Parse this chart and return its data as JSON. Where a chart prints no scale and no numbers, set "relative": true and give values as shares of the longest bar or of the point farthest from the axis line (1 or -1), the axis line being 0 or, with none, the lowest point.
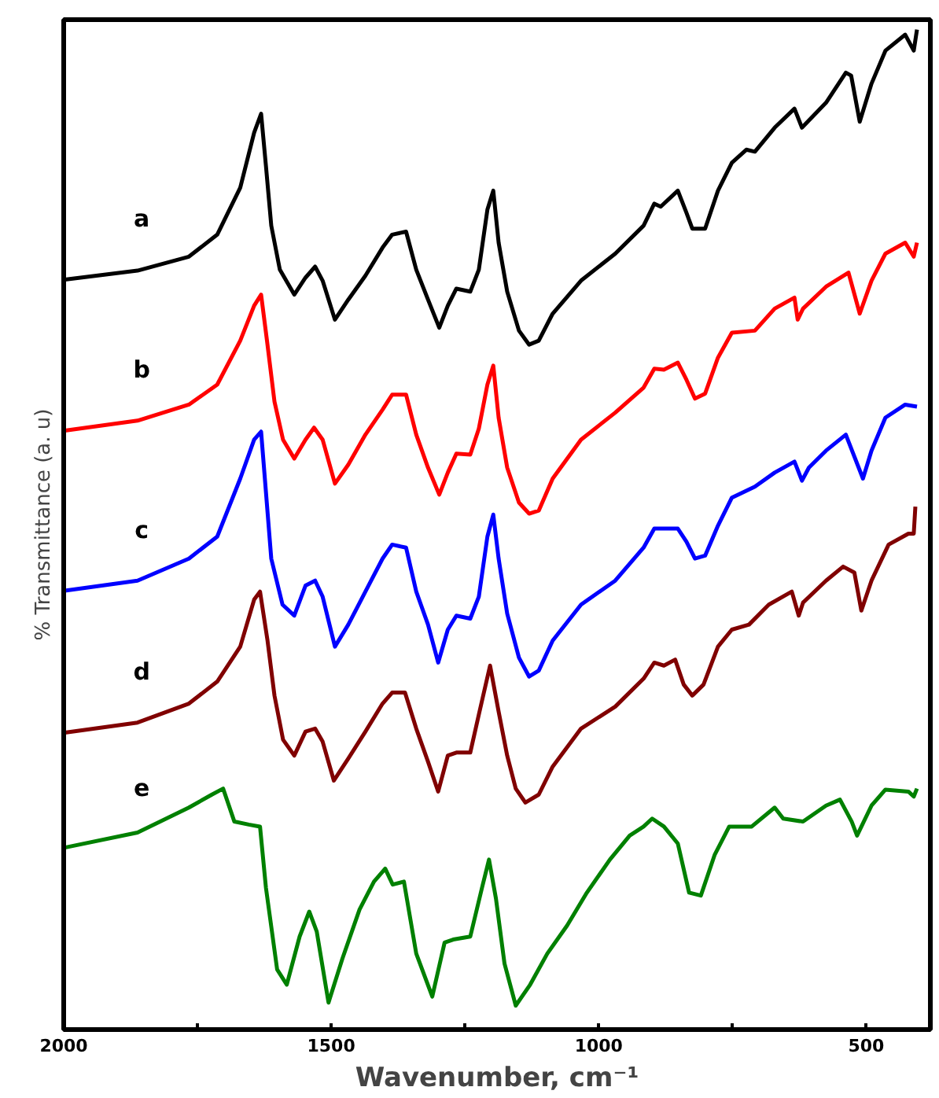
{
  "chart_data": {
    "type": "line",
    "relative": true,
    "xlabel": "Wavenumber, cm⁻¹",
    "ylabel": "% Transmittance (a. u)",
    "xlim": [
      2000,
      380
    ],
    "xticks": [
      2000,
      {
        "value": 1750,
        "label": null
      },
      1500,
      {
        "value": 1250,
        "label": null
      },
      1000,
      {
        "value": 750,
        "label": null
      },
      500
    ],
    "grid": false,
    "legend": false,
    "marker": "none",
    "line_style": "solid",
    "tick_labels": "x",
    "series": [
      {
        "name": "a",
        "color": "#000000",
        "x": [
          1998,
          1862,
          1766,
          1713,
          1670,
          1644,
          1631,
          1622,
          1612,
          1596,
          1569,
          1548,
          1530,
          1516,
          1493,
          1468,
          1436,
          1404,
          1386,
          1360,
          1341,
          1319,
          1298,
          1282,
          1266,
          1240,
          1224,
          1208,
          1197,
          1187,
          1171,
          1149,
          1130,
          1112,
          1086,
          1033,
          969,
          916,
          896,
          884,
          852,
          836,
          825,
          801,
          777,
          751,
          724,
          708,
          671,
          634,
          620,
          575,
          538,
          528,
          512,
          490,
          464,
          427,
          411,
          405
        ],
        "values": [
          0.75,
          0.759,
          0.773,
          0.795,
          0.842,
          0.897,
          0.916,
          0.864,
          0.804,
          0.76,
          0.735,
          0.752,
          0.763,
          0.749,
          0.71,
          0.73,
          0.754,
          0.782,
          0.795,
          0.798,
          0.76,
          0.73,
          0.702,
          0.724,
          0.741,
          0.738,
          0.76,
          0.82,
          0.839,
          0.787,
          0.738,
          0.699,
          0.685,
          0.689,
          0.716,
          0.749,
          0.776,
          0.804,
          0.826,
          0.823,
          0.839,
          0.817,
          0.801,
          0.801,
          0.839,
          0.867,
          0.88,
          0.878,
          0.902,
          0.921,
          0.902,
          0.927,
          0.957,
          0.954,
          0.908,
          0.946,
          0.979,
          0.995,
          0.979,
          1.0
        ]
      },
      {
        "name": "b",
        "color": "#ff0000",
        "x": [
          1998,
          1862,
          1766,
          1713,
          1670,
          1644,
          1631,
          1620,
          1606,
          1590,
          1569,
          1548,
          1532,
          1516,
          1493,
          1468,
          1436,
          1404,
          1386,
          1360,
          1341,
          1319,
          1298,
          1282,
          1266,
          1240,
          1224,
          1208,
          1197,
          1187,
          1171,
          1149,
          1130,
          1112,
          1086,
          1033,
          969,
          916,
          896,
          878,
          852,
          836,
          820,
          801,
          777,
          751,
          708,
          671,
          634,
          628,
          618,
          575,
          533,
          512,
          490,
          464,
          427,
          411,
          405
        ],
        "values": [
          0.599,
          0.609,
          0.625,
          0.645,
          0.689,
          0.724,
          0.735,
          0.689,
          0.628,
          0.59,
          0.571,
          0.59,
          0.602,
          0.59,
          0.546,
          0.565,
          0.595,
          0.62,
          0.635,
          0.635,
          0.595,
          0.562,
          0.535,
          0.557,
          0.576,
          0.575,
          0.601,
          0.645,
          0.664,
          0.612,
          0.562,
          0.527,
          0.516,
          0.519,
          0.551,
          0.59,
          0.617,
          0.642,
          0.661,
          0.66,
          0.667,
          0.65,
          0.631,
          0.636,
          0.672,
          0.697,
          0.699,
          0.721,
          0.732,
          0.71,
          0.721,
          0.743,
          0.757,
          0.716,
          0.749,
          0.776,
          0.787,
          0.773,
          0.787
        ]
      },
      {
        "name": "c",
        "color": "#0000ff",
        "x": [
          1998,
          1862,
          1766,
          1713,
          1670,
          1644,
          1631,
          1612,
          1591,
          1569,
          1548,
          1530,
          1516,
          1493,
          1468,
          1436,
          1404,
          1386,
          1360,
          1341,
          1319,
          1300,
          1282,
          1266,
          1240,
          1224,
          1208,
          1197,
          1187,
          1171,
          1149,
          1130,
          1112,
          1086,
          1033,
          969,
          916,
          896,
          852,
          836,
          820,
          801,
          777,
          751,
          708,
          671,
          634,
          620,
          607,
          575,
          538,
          506,
          490,
          464,
          427,
          405
        ],
        "values": [
          0.439,
          0.449,
          0.471,
          0.493,
          0.551,
          0.59,
          0.598,
          0.471,
          0.425,
          0.414,
          0.444,
          0.449,
          0.433,
          0.383,
          0.405,
          0.438,
          0.471,
          0.485,
          0.482,
          0.438,
          0.405,
          0.367,
          0.4,
          0.414,
          0.411,
          0.433,
          0.493,
          0.515,
          0.471,
          0.416,
          0.372,
          0.353,
          0.359,
          0.389,
          0.425,
          0.449,
          0.482,
          0.501,
          0.501,
          0.488,
          0.471,
          0.474,
          0.504,
          0.532,
          0.543,
          0.557,
          0.568,
          0.549,
          0.562,
          0.579,
          0.595,
          0.551,
          0.579,
          0.612,
          0.625,
          0.623
        ]
      },
      {
        "name": "d",
        "color": "#800000",
        "x": [
          1998,
          1862,
          1766,
          1713,
          1670,
          1644,
          1633,
          1619,
          1606,
          1590,
          1569,
          1548,
          1530,
          1516,
          1495,
          1468,
          1436,
          1404,
          1386,
          1362,
          1341,
          1319,
          1300,
          1282,
          1266,
          1240,
          1224,
          1203,
          1187,
          1171,
          1155,
          1137,
          1112,
          1086,
          1033,
          969,
          916,
          896,
          878,
          857,
          841,
          825,
          804,
          777,
          751,
          719,
          682,
          639,
          626,
          618,
          575,
          543,
          522,
          509,
          490,
          458,
          421,
          411,
          408
        ],
        "values": [
          0.297,
          0.307,
          0.326,
          0.348,
          0.383,
          0.43,
          0.438,
          0.389,
          0.334,
          0.29,
          0.274,
          0.298,
          0.301,
          0.288,
          0.249,
          0.271,
          0.298,
          0.326,
          0.337,
          0.337,
          0.301,
          0.268,
          0.238,
          0.274,
          0.277,
          0.277,
          0.315,
          0.364,
          0.318,
          0.274,
          0.241,
          0.227,
          0.235,
          0.263,
          0.301,
          0.323,
          0.351,
          0.367,
          0.364,
          0.37,
          0.345,
          0.334,
          0.345,
          0.383,
          0.4,
          0.405,
          0.425,
          0.438,
          0.414,
          0.427,
          0.449,
          0.463,
          0.457,
          0.419,
          0.449,
          0.485,
          0.496,
          0.496,
          0.523
        ]
      },
      {
        "name": "e",
        "color": "#008000",
        "x": [
          1998,
          1862,
          1766,
          1723,
          1702,
          1681,
          1654,
          1633,
          1622,
          1601,
          1583,
          1559,
          1541,
          1527,
          1505,
          1479,
          1447,
          1420,
          1399,
          1385,
          1364,
          1341,
          1311,
          1288,
          1272,
          1240,
          1218,
          1205,
          1192,
          1176,
          1155,
          1128,
          1096,
          1059,
          1022,
          979,
          942,
          916,
          900,
          878,
          852,
          831,
          809,
          783,
          756,
          714,
          671,
          655,
          618,
          575,
          549,
          527,
          517,
          490,
          464,
          421,
          411,
          405
        ],
        "values": [
          0.182,
          0.197,
          0.222,
          0.235,
          0.241,
          0.208,
          0.205,
          0.203,
          0.142,
          0.06,
          0.045,
          0.093,
          0.118,
          0.098,
          0.027,
          0.071,
          0.12,
          0.148,
          0.161,
          0.145,
          0.148,
          0.076,
          0.033,
          0.087,
          0.09,
          0.093,
          0.142,
          0.17,
          0.131,
          0.066,
          0.024,
          0.045,
          0.076,
          0.104,
          0.137,
          0.17,
          0.194,
          0.203,
          0.211,
          0.203,
          0.186,
          0.137,
          0.134,
          0.175,
          0.203,
          0.203,
          0.222,
          0.211,
          0.208,
          0.224,
          0.23,
          0.208,
          0.194,
          0.224,
          0.24,
          0.238,
          0.233,
          0.241
        ]
      }
    ]
  }
}
